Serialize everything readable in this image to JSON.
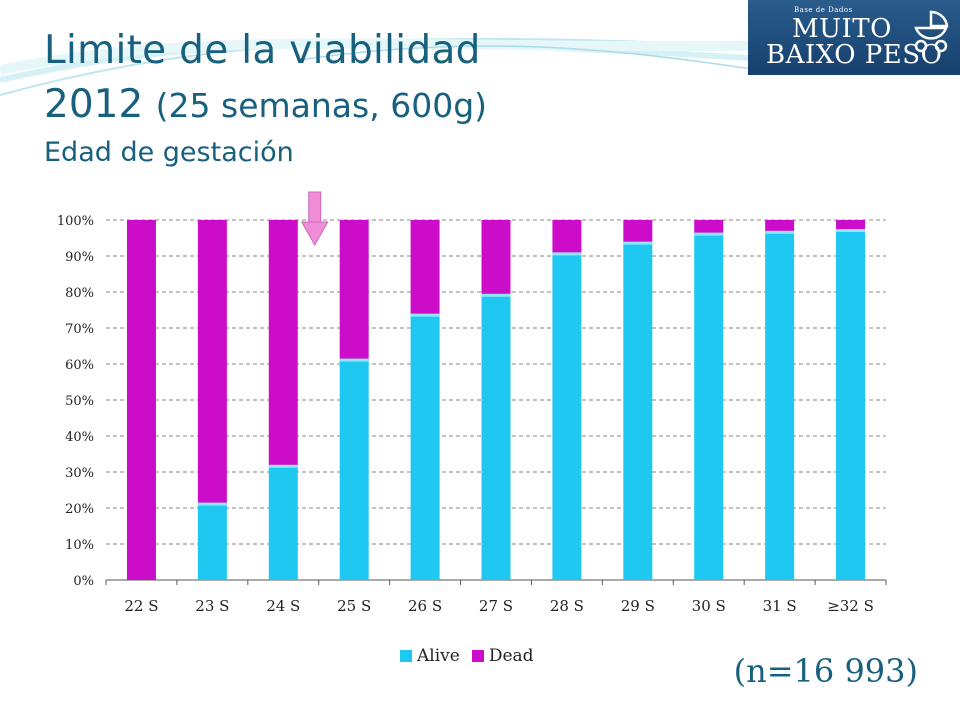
{
  "title": {
    "line1": "Limite de la viabilidad",
    "line2_year": "2012",
    "line2_paren": "(25 semanas, 600g)",
    "line3": "Edad de gestación"
  },
  "logo": {
    "small": "Base de Dados",
    "line1": "MUITO",
    "line2": "BAIXO PESO",
    "icon": "baby-carriage-icon"
  },
  "sample_note": "(n=16 993)",
  "colors": {
    "alive": "#1ec8f0",
    "dead": "#cc0cc8",
    "title": "#17607e",
    "arrow": "#f08cd8"
  },
  "chart_data": {
    "type": "bar",
    "stacked": true,
    "percent": true,
    "categories": [
      "22 S",
      "23 S",
      "24 S",
      "25 S",
      "26 S",
      "27 S",
      "28 S",
      "29 S",
      "30 S",
      "31 S",
      "≥32 S"
    ],
    "series": [
      {
        "name": "Alive",
        "values": [
          0,
          21.5,
          32,
          61.5,
          74,
          79.5,
          91,
          94,
          96.5,
          97,
          97.5
        ]
      },
      {
        "name": "Dead",
        "values": [
          100,
          78.5,
          68,
          38.5,
          26,
          20.5,
          9,
          6,
          3.5,
          3,
          2.5
        ]
      }
    ],
    "yticks": [
      "0%",
      "10%",
      "20%",
      "30%",
      "40%",
      "50%",
      "60%",
      "70%",
      "80%",
      "90%",
      "100%"
    ],
    "ylim": [
      0,
      100
    ],
    "grid": "horizontal-dashed",
    "legend_position": "bottom",
    "marker": {
      "category": "25 S",
      "shape": "down-arrow"
    }
  }
}
